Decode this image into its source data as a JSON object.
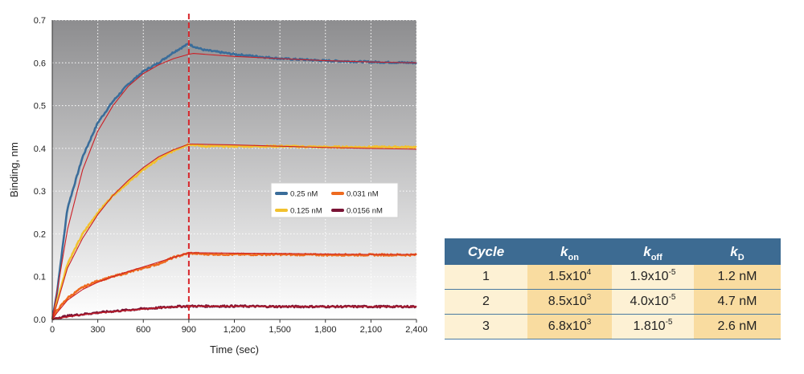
{
  "chart_data": {
    "type": "line",
    "xlabel": "Time (sec)",
    "ylabel": "Binding, nm",
    "xlim": [
      0,
      2400
    ],
    "ylim": [
      0,
      0.7
    ],
    "x_ticks": [
      0,
      300,
      600,
      900,
      1200,
      1500,
      1800,
      2100,
      2400
    ],
    "x_tick_labels": [
      "0",
      "300",
      "600",
      "900",
      "1,200",
      "1,500",
      "1,800",
      "2,100",
      "2,400"
    ],
    "y_ticks": [
      0,
      0.1,
      0.2,
      0.3,
      0.4,
      0.5,
      0.6,
      0.7
    ],
    "y_tick_labels": [
      "0.0",
      "0.1",
      "0.2",
      "0.3",
      "0.4",
      "0.5",
      "0.6",
      "0.7"
    ],
    "grid": true,
    "background_gradient": [
      "#8d8d8f",
      "#ffffff"
    ],
    "marker_line": {
      "x": 900,
      "color": "#d8262b",
      "style": "dashed"
    },
    "legend_position": "center-right",
    "series": [
      {
        "name": "0.25 nM",
        "color": "#3a6d9a",
        "x": [
          0,
          30,
          100,
          200,
          300,
          400,
          500,
          600,
          700,
          800,
          900,
          920,
          1000,
          1200,
          1500,
          1800,
          2100,
          2400
        ],
        "y": [
          0,
          0.06,
          0.26,
          0.38,
          0.46,
          0.51,
          0.55,
          0.58,
          0.6,
          0.625,
          0.645,
          0.64,
          0.63,
          0.62,
          0.61,
          0.605,
          0.602,
          0.6
        ]
      },
      {
        "name": "0.125 nM",
        "color": "#f2c12e",
        "x": [
          0,
          30,
          100,
          200,
          300,
          400,
          500,
          600,
          700,
          800,
          900,
          1000,
          1200,
          1500,
          1800,
          2100,
          2400
        ],
        "y": [
          0,
          0.04,
          0.13,
          0.2,
          0.25,
          0.29,
          0.32,
          0.35,
          0.375,
          0.395,
          0.41,
          0.405,
          0.405,
          0.405,
          0.403,
          0.403,
          0.403
        ]
      },
      {
        "name": "0.031 nM",
        "color": "#ee6a1f",
        "x": [
          0,
          30,
          100,
          200,
          300,
          400,
          500,
          600,
          700,
          800,
          900,
          1000,
          1200,
          1500,
          1800,
          2100,
          2400
        ],
        "y": [
          0,
          0.02,
          0.05,
          0.075,
          0.09,
          0.1,
          0.11,
          0.12,
          0.13,
          0.145,
          0.155,
          0.153,
          0.152,
          0.152,
          0.151,
          0.151,
          0.151
        ]
      },
      {
        "name": "0.0156 nM",
        "color": "#7a1435",
        "x": [
          0,
          50,
          100,
          200,
          300,
          400,
          500,
          600,
          700,
          800,
          900,
          1000,
          1200,
          1500,
          1800,
          2100,
          2400
        ],
        "y": [
          0,
          0.005,
          0.008,
          0.012,
          0.016,
          0.019,
          0.022,
          0.025,
          0.027,
          0.03,
          0.031,
          0.031,
          0.031,
          0.03,
          0.03,
          0.03,
          0.03
        ]
      }
    ],
    "fit_color": "#cc1f26",
    "fits": [
      {
        "x": [
          0,
          25,
          100,
          200,
          300,
          400,
          500,
          600,
          700,
          800,
          900,
          930,
          1000,
          1200,
          1500,
          1800,
          2100,
          2400
        ],
        "y": [
          0,
          0.05,
          0.21,
          0.35,
          0.44,
          0.5,
          0.545,
          0.575,
          0.595,
          0.61,
          0.62,
          0.622,
          0.62,
          0.615,
          0.61,
          0.605,
          0.602,
          0.6
        ]
      },
      {
        "x": [
          0,
          30,
          100,
          200,
          300,
          400,
          500,
          600,
          700,
          800,
          900,
          930,
          1200,
          1500,
          1800,
          2100,
          2400
        ],
        "y": [
          0,
          0.035,
          0.12,
          0.19,
          0.245,
          0.29,
          0.325,
          0.355,
          0.38,
          0.397,
          0.41,
          0.41,
          0.408,
          0.405,
          0.402,
          0.4,
          0.398
        ]
      },
      {
        "x": [
          0,
          30,
          100,
          200,
          300,
          400,
          500,
          600,
          700,
          800,
          900,
          1200,
          1500,
          1800,
          2100,
          2400
        ],
        "y": [
          0,
          0.015,
          0.045,
          0.07,
          0.087,
          0.1,
          0.112,
          0.123,
          0.134,
          0.145,
          0.156,
          0.155,
          0.154,
          0.153,
          0.152,
          0.152
        ]
      },
      {
        "x": [
          0,
          100,
          200,
          300,
          400,
          500,
          600,
          700,
          800,
          900,
          1200,
          1500,
          1800,
          2100,
          2400
        ],
        "y": [
          0,
          0.006,
          0.011,
          0.015,
          0.018,
          0.021,
          0.024,
          0.027,
          0.029,
          0.031,
          0.031,
          0.03,
          0.03,
          0.03,
          0.03
        ]
      }
    ]
  },
  "table": {
    "headers": {
      "cycle": "Cycle",
      "kon_main": "k",
      "kon_sub": "on",
      "koff_main": "k",
      "koff_sub": "off",
      "kd_main": "k",
      "kd_sub": "D"
    },
    "rows": [
      {
        "cycle": "1",
        "kon": "1.5x10",
        "kon_exp": "4",
        "koff": "1.9x10",
        "koff_exp": "-5",
        "kd": "1.2 nM"
      },
      {
        "cycle": "2",
        "kon": "8.5x10",
        "kon_exp": "3",
        "koff": "4.0x10",
        "koff_exp": "-5",
        "kd": "4.7 nM"
      },
      {
        "cycle": "3",
        "kon": "6.8x10",
        "kon_exp": "3",
        "koff": "1.810",
        "koff_exp": "-5",
        "kd": "2.6 nM"
      }
    ]
  }
}
